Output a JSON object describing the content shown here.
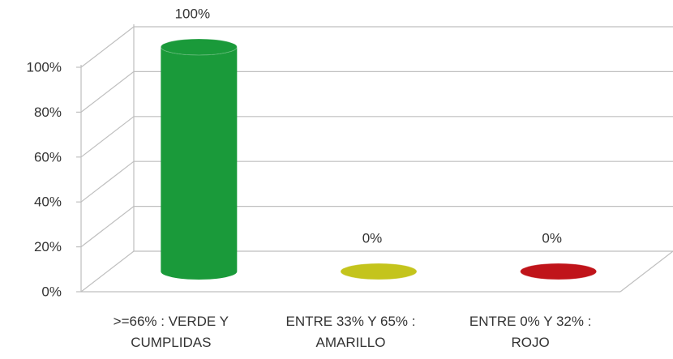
{
  "chart_data": {
    "type": "bar3d",
    "categories": [
      ">=66% :  VERDE Y\nCUMPLIDAS",
      "ENTRE 33% Y 65% :\nAMARILLO",
      "ENTRE 0% Y 32% :\nROJO"
    ],
    "values": [
      100,
      0,
      0
    ],
    "value_labels": [
      "100%",
      "0%",
      "0%"
    ],
    "colors": [
      "#1a9a3a",
      "#c4c41c",
      "#c0141a"
    ],
    "ylim": [
      0,
      100
    ],
    "yticks": [
      {
        "value": 0,
        "label": "0%"
      },
      {
        "value": 20,
        "label": "20%"
      },
      {
        "value": 40,
        "label": "40%"
      },
      {
        "value": 60,
        "label": "60%"
      },
      {
        "value": 80,
        "label": "80%"
      },
      {
        "value": 100,
        "label": "100%"
      }
    ],
    "grid": true
  }
}
